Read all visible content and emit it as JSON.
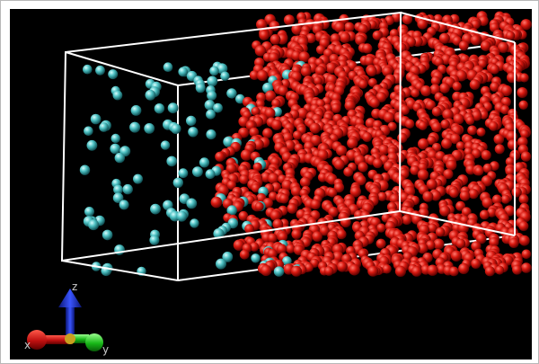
{
  "viewer": {
    "background": "#000000",
    "box_color": "#ffffff"
  },
  "molecules": {
    "solvent_color": "#c0100c",
    "solvent_highlight": "#ff7a70",
    "solute_color": "#3fb3b5",
    "solute_highlight": "#d8ffff"
  },
  "axes": {
    "z_label": "z",
    "x_label": "x",
    "y_label": "y",
    "x_color": "#d01010",
    "y_color": "#18c018",
    "z_color": "#1a2fd6",
    "label_color": "#c8c8c8"
  }
}
